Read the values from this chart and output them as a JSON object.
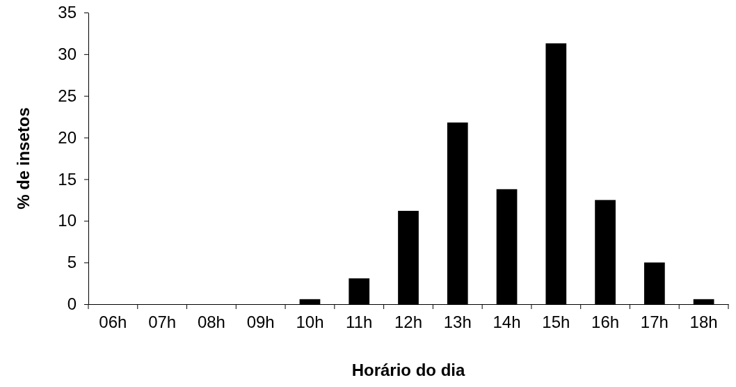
{
  "chart_data": {
    "type": "bar",
    "xlabel": "Horário do dia",
    "ylabel": "% de insetos",
    "categories": [
      "06h",
      "07h",
      "08h",
      "09h",
      "10h",
      "11h",
      "12h",
      "13h",
      "14h",
      "15h",
      "16h",
      "17h",
      "18h"
    ],
    "values": [
      0,
      0,
      0,
      0,
      0.6,
      3.1,
      11.2,
      21.8,
      13.8,
      31.3,
      12.5,
      5.0,
      0.6
    ],
    "color": "#000000",
    "ylim": [
      0,
      35
    ],
    "yticks": [
      0,
      5,
      10,
      15,
      20,
      25,
      30,
      35
    ]
  }
}
